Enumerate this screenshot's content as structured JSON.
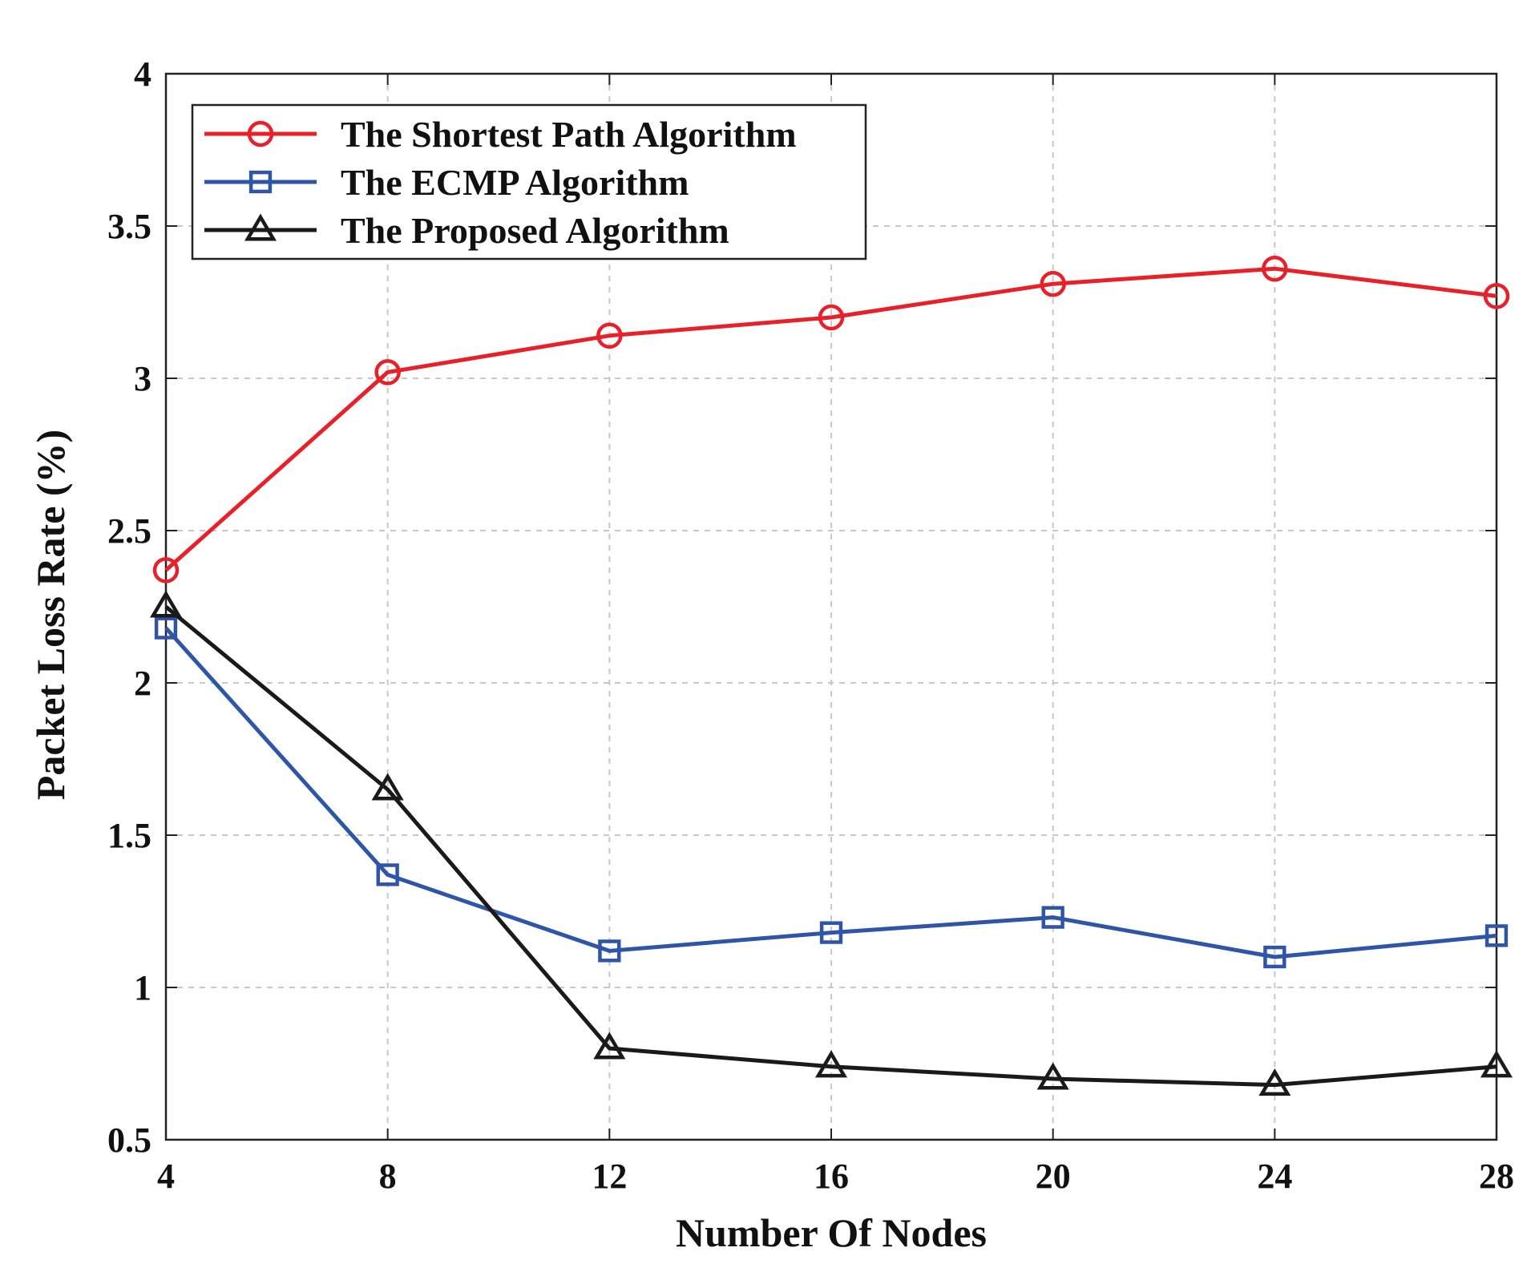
{
  "chart_data": {
    "type": "line",
    "title": "",
    "xlabel": "Number Of Nodes",
    "ylabel": "Packet Loss Rate (%)",
    "x": [
      4,
      8,
      12,
      16,
      20,
      24,
      28
    ],
    "xlim": [
      4,
      28
    ],
    "ylim": [
      0.5,
      4
    ],
    "xticks": [
      "4",
      "8",
      "12",
      "16",
      "20",
      "24",
      "28"
    ],
    "yticks": [
      "0.5",
      "1",
      "1.5",
      "2",
      "2.5",
      "3",
      "3.5",
      "4"
    ],
    "grid": true,
    "legend_position": "top-left",
    "series": [
      {
        "name": "The Shortest Path Algorithm",
        "color": "#e8202a",
        "marker": "circle",
        "values": [
          2.37,
          3.02,
          3.14,
          3.2,
          3.31,
          3.36,
          3.27
        ]
      },
      {
        "name": "The ECMP Algorithm",
        "color": "#2f55a8",
        "marker": "square",
        "values": [
          2.18,
          1.37,
          1.12,
          1.18,
          1.23,
          1.1,
          1.17
        ]
      },
      {
        "name": "The Proposed Algorithm",
        "color": "#1a1a1a",
        "marker": "triangle",
        "values": [
          2.25,
          1.65,
          0.8,
          0.74,
          0.7,
          0.68,
          0.74
        ]
      }
    ]
  }
}
